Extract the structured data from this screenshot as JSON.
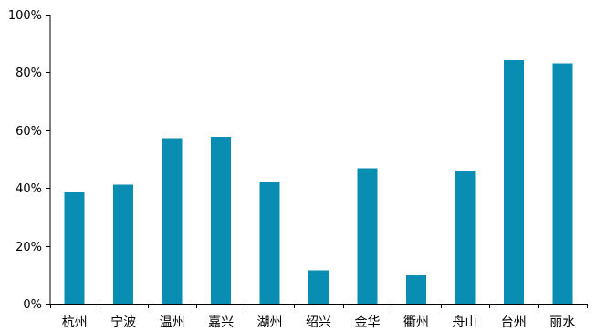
{
  "chart_data": {
    "type": "bar",
    "title": "",
    "xlabel": "",
    "ylabel": "",
    "categories": [
      "杭州",
      "宁波",
      "温州",
      "嘉兴",
      "湖州",
      "绍兴",
      "金华",
      "衢州",
      "舟山",
      "台州",
      "丽水"
    ],
    "values": [
      38.5,
      41.2,
      57.3,
      57.8,
      41.9,
      11.5,
      46.8,
      9.8,
      46.0,
      84.3,
      83.2
    ],
    "y_unit": "percent",
    "ylim": [
      0,
      100
    ],
    "y_ticks": [
      {
        "value": 0,
        "label": "0%"
      },
      {
        "value": 20,
        "label": "20%"
      },
      {
        "value": 40,
        "label": "40%"
      },
      {
        "value": 60,
        "label": "60%"
      },
      {
        "value": 80,
        "label": "80%"
      },
      {
        "value": 100,
        "label": "100%"
      }
    ],
    "grid": false,
    "legend": "none",
    "bar_color": "#0A8DB2"
  }
}
